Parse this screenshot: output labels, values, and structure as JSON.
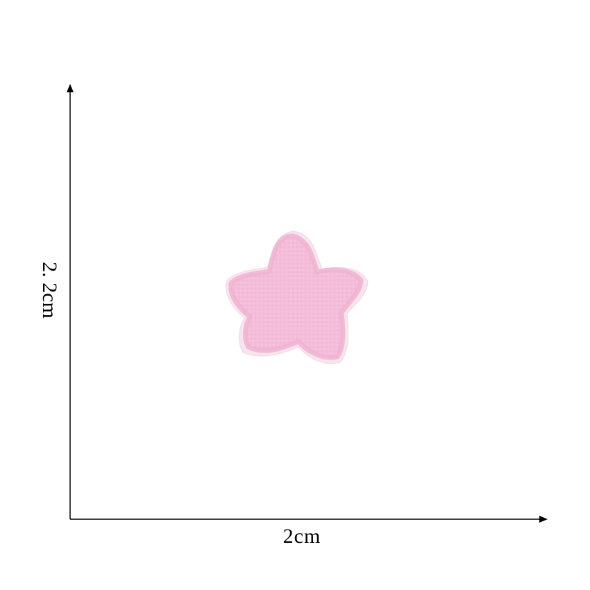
{
  "dimensions": {
    "width_label": "2cm",
    "height_label": "2. 2cm"
  },
  "product": {
    "shape": "star",
    "fill_color": "#f4bedb",
    "border_color": "#f7e4ee",
    "stitch_color": "#eeaccd"
  },
  "colors": {
    "axis": "#000000",
    "background": "#ffffff"
  }
}
